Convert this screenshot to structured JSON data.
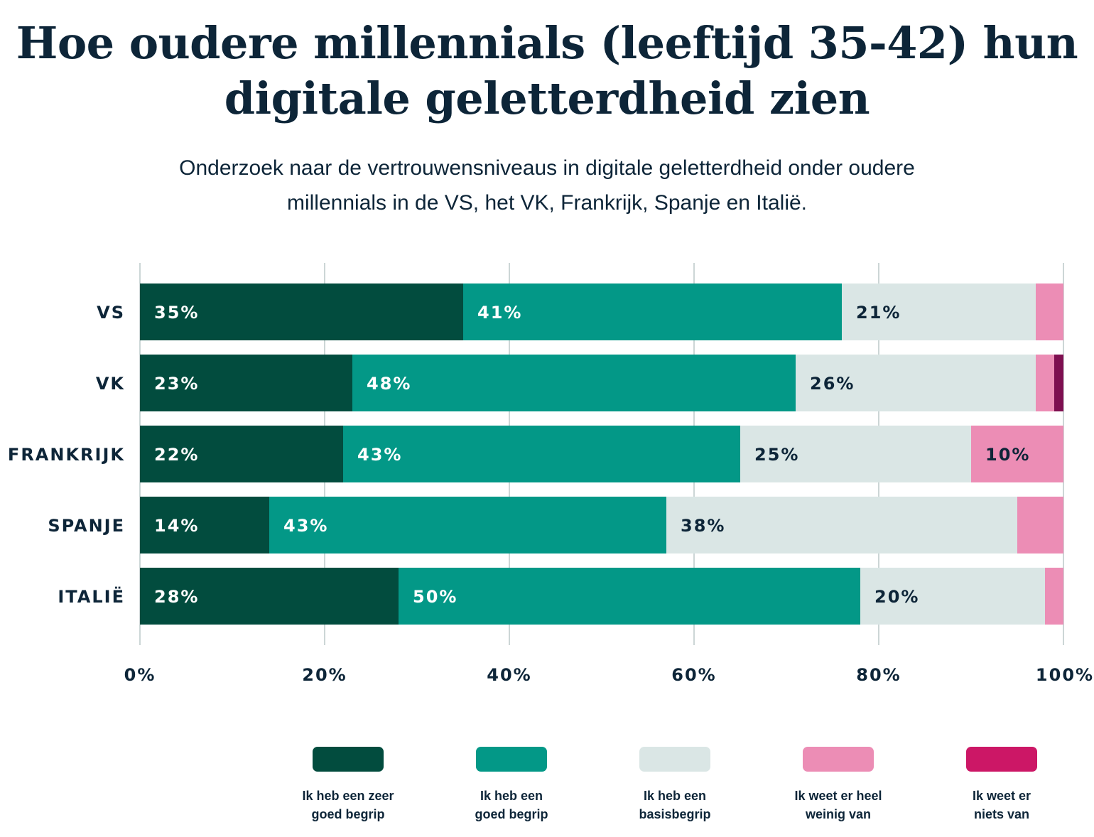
{
  "chart_data": {
    "type": "bar",
    "orientation": "horizontal",
    "stacked": true,
    "title": "Hoe oudere millennials (leeftijd 35-42) hun digitale geletterdheid zien",
    "subtitle": "Onderzoek naar de vertrouwensniveaus in digitale geletterdheid onder oudere millennials in de VS, het VK, Frankrijk, Spanje en Italië.",
    "categories": [
      "VS",
      "VK",
      "FRANKRIJK",
      "SPANJE",
      "ITALIË"
    ],
    "series": [
      {
        "name": "Ik heb een zeer goed begrip",
        "values": [
          35,
          23,
          22,
          14,
          28
        ],
        "color": "#024c3e",
        "label_color": "#ffffff"
      },
      {
        "name": "Ik heb een goed begrip",
        "values": [
          41,
          48,
          43,
          43,
          50
        ],
        "color": "#039887",
        "label_color": "#ffffff"
      },
      {
        "name": "Ik heb een basisbegrip",
        "values": [
          21,
          26,
          25,
          38,
          20
        ],
        "color": "#dae6e5",
        "label_color": "#0d2538"
      },
      {
        "name": "Ik weet er heel weinig van",
        "values": [
          3,
          2,
          10,
          5,
          2
        ],
        "color": "#ec8db5",
        "label_color": "#0d2538"
      },
      {
        "name": "Ik weet er niets van",
        "values": [
          0,
          1,
          0,
          0,
          0
        ],
        "color": "#7e0f50",
        "legend_color": "#cc1766",
        "label_color": "#ffffff"
      }
    ],
    "xlim": [
      0,
      100
    ],
    "xticks": [
      "0%",
      "20%",
      "40%",
      "60%",
      "80%",
      "100%"
    ],
    "grid": true,
    "legend_position": "bottom"
  },
  "legend": [
    {
      "label": "Ik heb een zeer\ngoed begrip",
      "color": "#024c3e"
    },
    {
      "label": "Ik heb een\ngoed begrip",
      "color": "#039887"
    },
    {
      "label": "Ik heb een\nbasisbegrip",
      "color": "#dae6e5"
    },
    {
      "label": "Ik weet er heel\nweinig van",
      "color": "#ec8db5"
    },
    {
      "label": "Ik weet er\nniets van",
      "color": "#cc1766"
    }
  ]
}
